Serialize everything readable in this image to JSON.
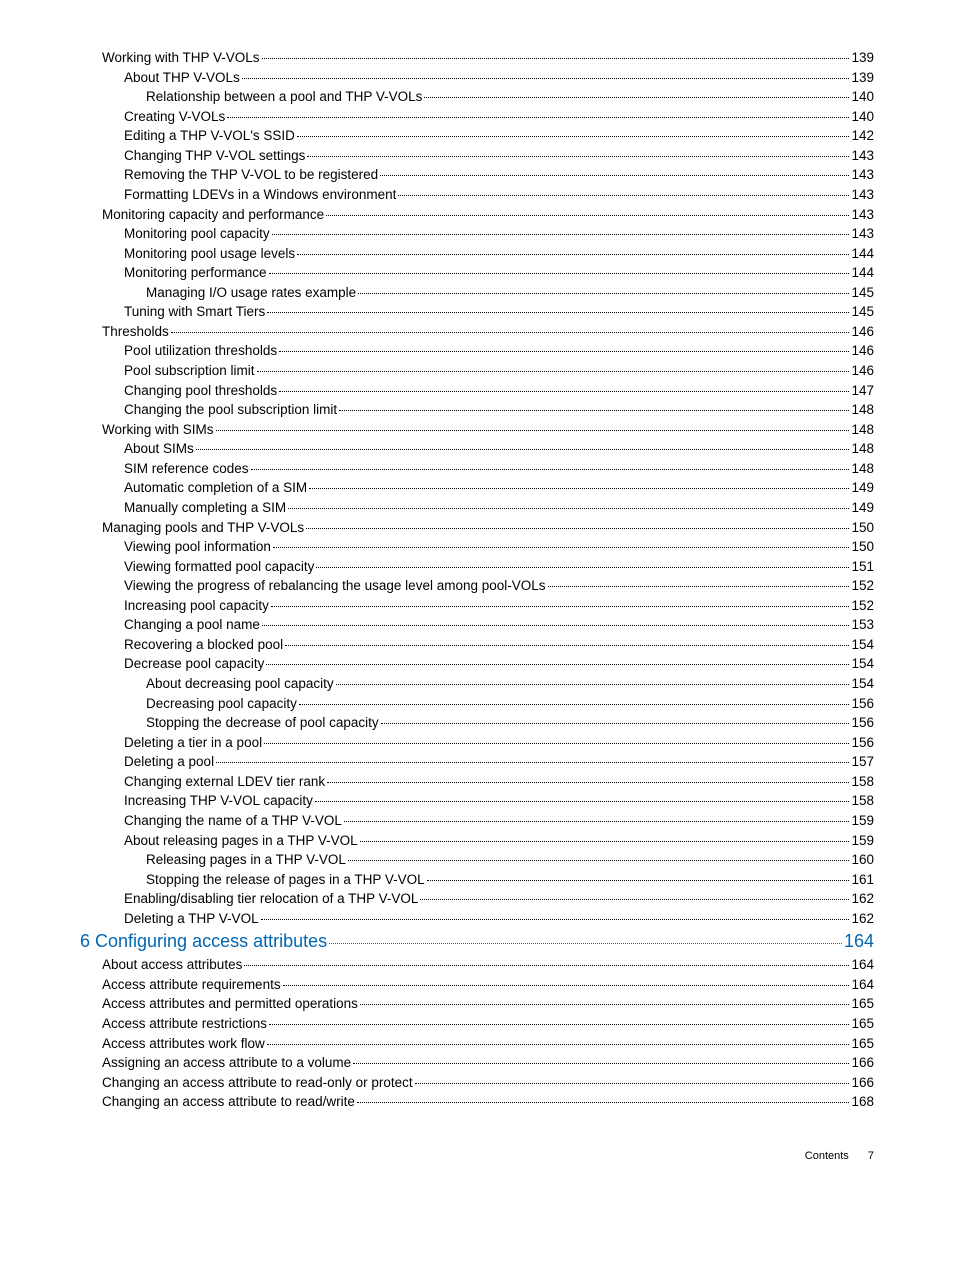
{
  "entries": [
    {
      "text": "Working with THP V-VOLs",
      "page": "139",
      "indent": 1
    },
    {
      "text": "About THP V-VOLs",
      "page": "139",
      "indent": 2
    },
    {
      "text": "Relationship between a pool and THP V-VOLs",
      "page": "140",
      "indent": 3
    },
    {
      "text": "Creating V-VOLs",
      "page": "140",
      "indent": 2
    },
    {
      "text": "Editing a THP V-VOL's SSID",
      "page": "142",
      "indent": 2
    },
    {
      "text": "Changing THP V-VOL settings",
      "page": "143",
      "indent": 2
    },
    {
      "text": "Removing the THP V-VOL to be registered",
      "page": "143",
      "indent": 2
    },
    {
      "text": "Formatting LDEVs in a Windows environment",
      "page": "143",
      "indent": 2
    },
    {
      "text": "Monitoring capacity and performance",
      "page": "143",
      "indent": 1
    },
    {
      "text": "Monitoring pool capacity",
      "page": "143",
      "indent": 2
    },
    {
      "text": "Monitoring pool usage levels",
      "page": "144",
      "indent": 2
    },
    {
      "text": "Monitoring performance",
      "page": "144",
      "indent": 2
    },
    {
      "text": "Managing I/O usage rates example",
      "page": "145",
      "indent": 3
    },
    {
      "text": "Tuning with Smart Tiers",
      "page": "145",
      "indent": 2
    },
    {
      "text": "Thresholds",
      "page": "146",
      "indent": 1
    },
    {
      "text": "Pool utilization thresholds",
      "page": "146",
      "indent": 2
    },
    {
      "text": "Pool subscription limit",
      "page": "146",
      "indent": 2
    },
    {
      "text": "Changing pool thresholds",
      "page": "147",
      "indent": 2
    },
    {
      "text": "Changing the pool subscription limit",
      "page": "148",
      "indent": 2
    },
    {
      "text": "Working with SIMs",
      "page": "148",
      "indent": 1
    },
    {
      "text": "About SIMs",
      "page": "148",
      "indent": 2
    },
    {
      "text": "SIM reference codes",
      "page": "148",
      "indent": 2
    },
    {
      "text": "Automatic completion of a SIM ",
      "page": "149",
      "indent": 2
    },
    {
      "text": "Manually completing a SIM",
      "page": "149",
      "indent": 2
    },
    {
      "text": "Managing pools and THP V-VOLs",
      "page": "150",
      "indent": 1
    },
    {
      "text": "Viewing pool information",
      "page": "150",
      "indent": 2
    },
    {
      "text": "Viewing formatted pool capacity",
      "page": "151",
      "indent": 2
    },
    {
      "text": "Viewing the progress of rebalancing the usage level among pool-VOLs ",
      "page": "152",
      "indent": 2
    },
    {
      "text": "Increasing pool capacity",
      "page": "152",
      "indent": 2
    },
    {
      "text": "Changing a pool name",
      "page": "153",
      "indent": 2
    },
    {
      "text": "Recovering a blocked pool",
      "page": "154",
      "indent": 2
    },
    {
      "text": "Decrease pool capacity",
      "page": "154",
      "indent": 2
    },
    {
      "text": "About decreasing pool capacity",
      "page": "154",
      "indent": 3
    },
    {
      "text": "Decreasing pool capacity",
      "page": "156",
      "indent": 3
    },
    {
      "text": "Stopping the decrease of pool capacity",
      "page": "156",
      "indent": 3
    },
    {
      "text": "Deleting a tier in a pool",
      "page": "156",
      "indent": 2
    },
    {
      "text": "Deleting a pool",
      "page": "157",
      "indent": 2
    },
    {
      "text": "Changing external LDEV tier rank",
      "page": "158",
      "indent": 2
    },
    {
      "text": "Increasing THP V-VOL capacity",
      "page": "158",
      "indent": 2
    },
    {
      "text": "Changing the name of a THP V-VOL",
      "page": "159",
      "indent": 2
    },
    {
      "text": "About releasing pages in a THP V-VOL",
      "page": "159",
      "indent": 2
    },
    {
      "text": "Releasing pages in a THP V-VOL",
      "page": "160",
      "indent": 3
    },
    {
      "text": "Stopping the release of pages in a THP V-VOL",
      "page": "161",
      "indent": 3
    },
    {
      "text": "Enabling/disabling tier relocation of a THP V-VOL",
      "page": "162",
      "indent": 2
    },
    {
      "text": "Deleting a THP V-VOL",
      "page": "162",
      "indent": 2
    },
    {
      "text": "6 Configuring access attributes",
      "page": "164",
      "indent": 0,
      "chapter": true
    },
    {
      "text": "About access attributes",
      "page": "164",
      "indent": 1
    },
    {
      "text": "Access attribute requirements",
      "page": "164",
      "indent": 1
    },
    {
      "text": "Access attributes and permitted operations",
      "page": "165",
      "indent": 1
    },
    {
      "text": "Access attribute restrictions",
      "page": "165",
      "indent": 1
    },
    {
      "text": "Access attributes work flow",
      "page": "165",
      "indent": 1
    },
    {
      "text": "Assigning an access attribute to a volume",
      "page": "166",
      "indent": 1
    },
    {
      "text": "Changing an access attribute to read-only or protect",
      "page": "166",
      "indent": 1
    },
    {
      "text": "Changing an access attribute to read/write",
      "page": "168",
      "indent": 1
    }
  ],
  "footer": {
    "label": "Contents",
    "page": "7"
  }
}
